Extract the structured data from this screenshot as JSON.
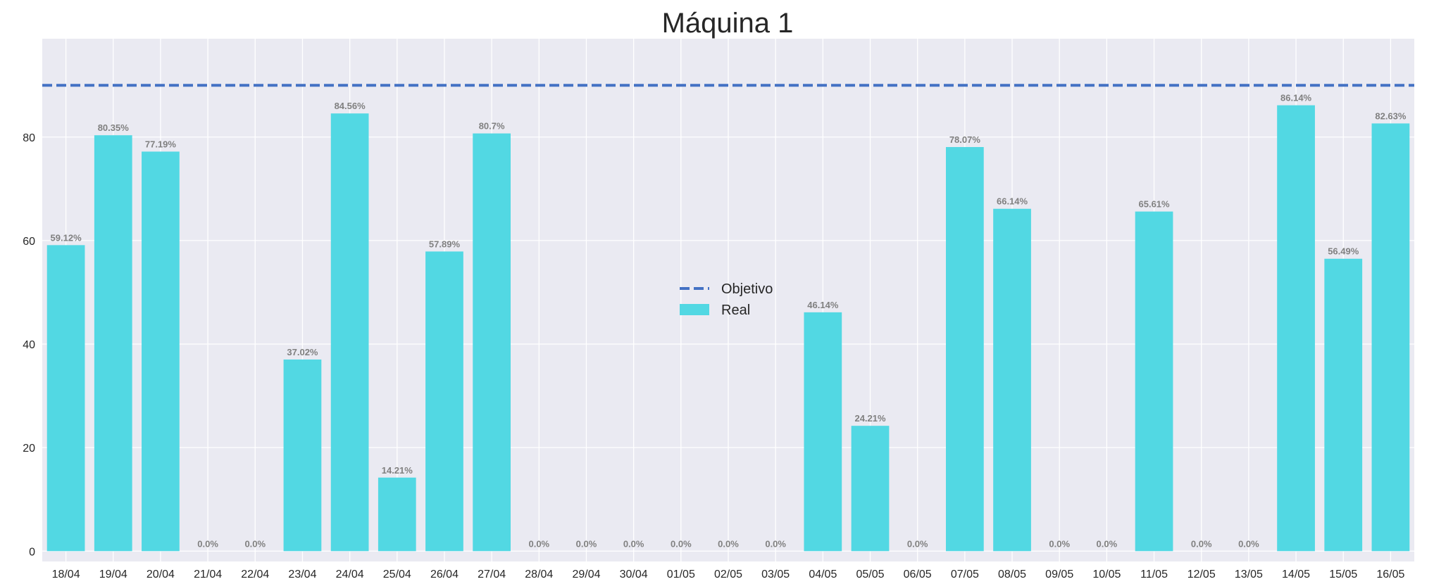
{
  "chart_data": {
    "type": "bar",
    "title": "Máquina 1",
    "xlabel": "",
    "ylabel": "",
    "categories": [
      "18/04",
      "19/04",
      "20/04",
      "21/04",
      "22/04",
      "23/04",
      "24/04",
      "25/04",
      "26/04",
      "27/04",
      "28/04",
      "29/04",
      "30/04",
      "01/05",
      "02/05",
      "03/05",
      "04/05",
      "05/05",
      "06/05",
      "07/05",
      "08/05",
      "09/05",
      "10/05",
      "11/05",
      "12/05",
      "13/05",
      "14/05",
      "15/05",
      "16/05"
    ],
    "series": [
      {
        "name": "Real",
        "values": [
          59.12,
          80.35,
          77.19,
          0.0,
          0.0,
          37.02,
          84.56,
          14.21,
          57.89,
          80.7,
          0.0,
          0.0,
          0.0,
          0.0,
          0.0,
          0.0,
          46.14,
          24.21,
          0.0,
          78.07,
          66.14,
          0.0,
          0.0,
          65.61,
          0.0,
          0.0,
          86.14,
          56.49,
          82.63
        ],
        "data_labels": [
          "59.12%",
          "80.35%",
          "77.19%",
          "0.0%",
          "0.0%",
          "37.02%",
          "84.56%",
          "14.21%",
          "57.89%",
          "80.7%",
          "0.0%",
          "0.0%",
          "0.0%",
          "0.0%",
          "0.0%",
          "0.0%",
          "46.14%",
          "24.21%",
          "0.0%",
          "78.07%",
          "66.14%",
          "0.0%",
          "0.0%",
          "65.61%",
          "0.0%",
          "0.0%",
          "86.14%",
          "56.49%",
          "82.63%"
        ],
        "color": "#52d8e3"
      }
    ],
    "reference_line": {
      "name": "Objetivo",
      "value": 90,
      "color": "#4472c4",
      "style": "dashed"
    },
    "ylim": [
      -2,
      99
    ],
    "yticks": [
      0,
      20,
      40,
      60,
      80
    ],
    "grid": true,
    "legend": {
      "placement": "center",
      "entries": [
        "Objetivo",
        "Real"
      ]
    },
    "background": "#eaeaf2"
  }
}
